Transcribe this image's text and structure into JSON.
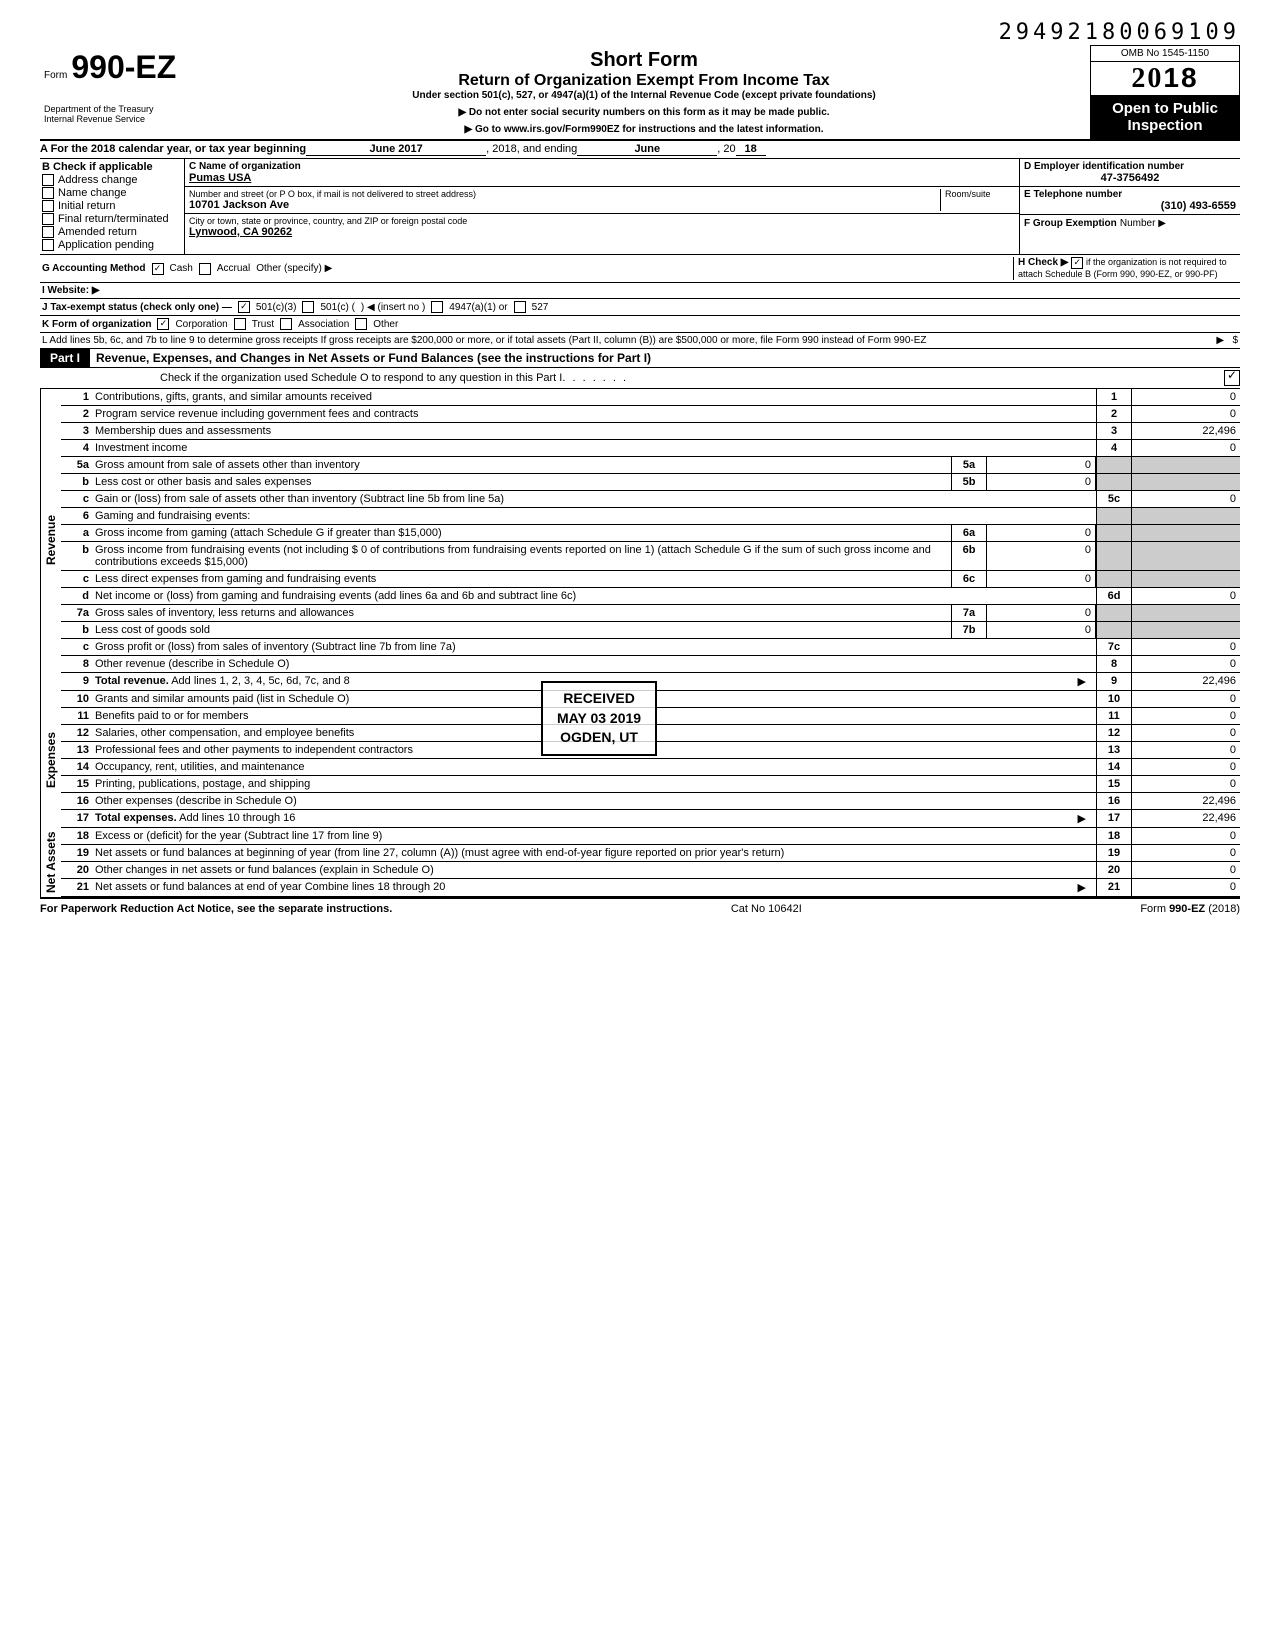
{
  "header_number": "29492180069109",
  "form": {
    "prefix": "Form",
    "number": "990-EZ",
    "dept1": "Department of the Treasury",
    "dept2": "Internal Revenue Service",
    "title_short": "Short Form",
    "title_main": "Return of Organization Exempt From Income Tax",
    "title_section": "Under section 501(c), 527, or 4947(a)(1) of the Internal Revenue Code (except private foundations)",
    "title_warn": "▶ Do not enter social security numbers on this form as it may be made public.",
    "title_link": "▶ Go to www.irs.gov/Form990EZ for instructions and the latest information.",
    "omb": "OMB No 1545-1150",
    "year_prefix": "20",
    "year": "18",
    "open1": "Open to Public",
    "open2": "Inspection"
  },
  "rowA": {
    "label": "A  For the 2018 calendar year, or tax year beginning",
    "begin": "June 2017",
    "mid": ", 2018, and ending",
    "end_month": "June",
    "end_sep": ", 20",
    "end_yr": "18"
  },
  "colB": {
    "header": "B  Check if applicable",
    "items": [
      "Address change",
      "Name change",
      "Initial return",
      "Final return/terminated",
      "Amended return",
      "Application pending"
    ]
  },
  "colC": {
    "name_label": "C  Name of organization",
    "name": "Pumas USA",
    "street_label": "Number and street (or P O  box, if mail is not delivered to street address)",
    "room_label": "Room/suite",
    "street": "10701 Jackson Ave",
    "city_label": "City or town, state or province, country, and ZIP or foreign postal code",
    "city": "Lynwood, CA 90262"
  },
  "colD": {
    "d_label": "D  Employer identification number",
    "ein": "47-3756492",
    "e_label": "E  Telephone number",
    "phone": "(310) 493-6559",
    "f_label": "F  Group Exemption",
    "f_label2": "Number ▶"
  },
  "rowG": {
    "label": "G  Accounting Method",
    "cash": "Cash",
    "accrual": "Accrual",
    "other": "Other (specify) ▶",
    "h_label": "H  Check ▶",
    "h_text": "if the organization is not required to attach Schedule B (Form 990, 990-EZ, or 990-PF)"
  },
  "rowI": {
    "label": "I  Website: ▶"
  },
  "rowJ": {
    "label": "J  Tax-exempt status (check only one) —",
    "o1": "501(c)(3)",
    "o2": "501(c) (",
    "o2b": ") ◀ (insert no )",
    "o3": "4947(a)(1) or",
    "o4": "527"
  },
  "rowK": {
    "label": "K  Form of organization",
    "o1": "Corporation",
    "o2": "Trust",
    "o3": "Association",
    "o4": "Other"
  },
  "rowL": {
    "text": "L  Add lines 5b, 6c, and 7b to line 9 to determine gross receipts  If gross receipts are $200,000 or more, or if total assets (Part II, column (B)) are $500,000 or more, file Form 990 instead of Form 990-EZ",
    "arrow": "▶",
    "dollar": "$"
  },
  "part1": {
    "label": "Part I",
    "title": "Revenue, Expenses, and Changes in Net Assets or Fund Balances (see the instructions for Part I)",
    "scheduleO": "Check if the organization used Schedule O to respond to any question in this Part I"
  },
  "sides": {
    "revenue": "Revenue",
    "expenses": "Expenses",
    "netassets": "Net Assets"
  },
  "lines": [
    {
      "n": "1",
      "t": "Contributions, gifts, grants, and similar amounts received",
      "box": "1",
      "v": "0"
    },
    {
      "n": "2",
      "t": "Program service revenue including government fees and contracts",
      "box": "2",
      "v": "0"
    },
    {
      "n": "3",
      "t": "Membership dues and assessments",
      "box": "3",
      "v": "22,496"
    },
    {
      "n": "4",
      "t": "Investment income",
      "box": "4",
      "v": "0"
    },
    {
      "n": "5a",
      "t": "Gross amount from sale of assets other than inventory",
      "ibox": "5a",
      "iv": "0"
    },
    {
      "n": "b",
      "t": "Less  cost or other basis and sales expenses",
      "ibox": "5b",
      "iv": "0"
    },
    {
      "n": "c",
      "t": "Gain or (loss) from sale of assets other than inventory (Subtract line 5b from line 5a)",
      "box": "5c",
      "v": "0"
    },
    {
      "n": "6",
      "t": "Gaming and fundraising events:"
    },
    {
      "n": "a",
      "t": "Gross income from gaming (attach Schedule G if greater than $15,000)",
      "ibox": "6a",
      "iv": "0"
    },
    {
      "n": "b",
      "t": "Gross income from fundraising events (not including  $                    0 of contributions from fundraising events reported on line 1) (attach Schedule G if the sum of such gross income and contributions exceeds $15,000)",
      "ibox": "6b",
      "iv": "0"
    },
    {
      "n": "c",
      "t": "Less  direct expenses from gaming and fundraising events",
      "ibox": "6c",
      "iv": "0"
    },
    {
      "n": "d",
      "t": "Net income or (loss) from gaming and fundraising events (add lines 6a and 6b and subtract line 6c)",
      "box": "6d",
      "v": "0"
    },
    {
      "n": "7a",
      "t": "Gross sales of inventory, less returns and allowances",
      "ibox": "7a",
      "iv": "0"
    },
    {
      "n": "b",
      "t": "Less  cost of goods sold",
      "ibox": "7b",
      "iv": "0"
    },
    {
      "n": "c",
      "t": "Gross profit or (loss) from sales of inventory (Subtract line 7b from line 7a)",
      "box": "7c",
      "v": "0"
    },
    {
      "n": "8",
      "t": "Other revenue (describe in Schedule O)",
      "box": "8",
      "v": "0"
    },
    {
      "n": "9",
      "t": "Total revenue. Add lines 1, 2, 3, 4, 5c, 6d, 7c, and 8",
      "box": "9",
      "v": "22,496",
      "arrow": true,
      "bold": true
    }
  ],
  "exp_lines": [
    {
      "n": "10",
      "t": "Grants and similar amounts paid (list in Schedule O)",
      "box": "10",
      "v": "0"
    },
    {
      "n": "11",
      "t": "Benefits paid to or for members",
      "box": "11",
      "v": "0"
    },
    {
      "n": "12",
      "t": "Salaries, other compensation, and employee benefits",
      "box": "12",
      "v": "0"
    },
    {
      "n": "13",
      "t": "Professional fees and other payments to independent contractors",
      "box": "13",
      "v": "0"
    },
    {
      "n": "14",
      "t": "Occupancy, rent, utilities, and maintenance",
      "box": "14",
      "v": "0"
    },
    {
      "n": "15",
      "t": "Printing, publications, postage, and shipping",
      "box": "15",
      "v": "0"
    },
    {
      "n": "16",
      "t": "Other expenses (describe in Schedule O)",
      "box": "16",
      "v": "22,496"
    },
    {
      "n": "17",
      "t": "Total expenses. Add lines 10 through 16",
      "box": "17",
      "v": "22,496",
      "arrow": true,
      "bold": true
    }
  ],
  "net_lines": [
    {
      "n": "18",
      "t": "Excess or (deficit) for the year (Subtract line 17 from line 9)",
      "box": "18",
      "v": "0"
    },
    {
      "n": "19",
      "t": "Net assets or fund balances at beginning of year (from line 27, column (A)) (must agree with end-of-year figure reported on prior year's return)",
      "box": "19",
      "v": "0"
    },
    {
      "n": "20",
      "t": "Other changes in net assets or fund balances (explain in Schedule O)",
      "box": "20",
      "v": "0"
    },
    {
      "n": "21",
      "t": "Net assets or fund balances at end of year  Combine lines 18 through 20",
      "box": "21",
      "v": "0",
      "arrow": true
    }
  ],
  "stamp": {
    "l1": "RECEIVED",
    "l2": "MAY 03 2019",
    "l3": "OGDEN, UT"
  },
  "footer": {
    "left": "For Paperwork Reduction Act Notice, see the separate instructions.",
    "mid": "Cat No  10642I",
    "right": "Form 990-EZ (2018)"
  }
}
